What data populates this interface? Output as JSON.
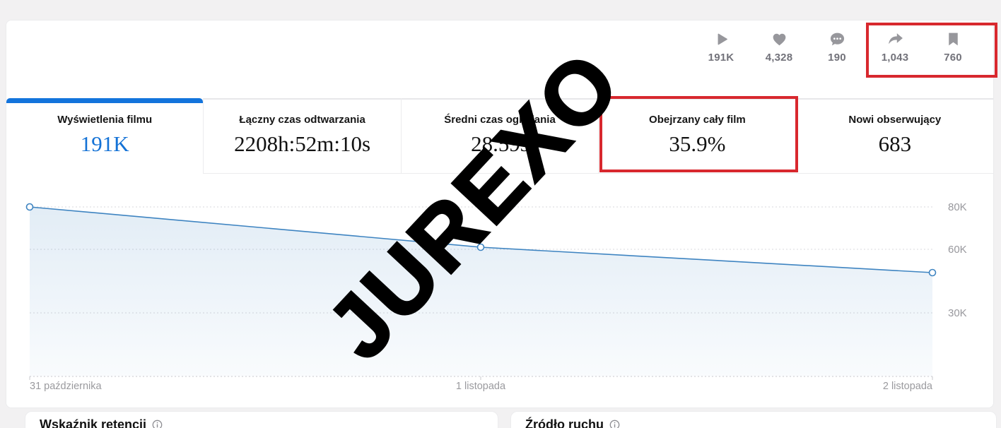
{
  "watermark": {
    "text": "JUREXO"
  },
  "colors": {
    "accent_blue": "#1374dc",
    "annotation_red": "#d8282e",
    "chart_line": "#3e84c1",
    "icon_gray": "#97979c"
  },
  "engagement": {
    "items": [
      {
        "icon": "play-icon",
        "value": "191K"
      },
      {
        "icon": "heart-icon",
        "value": "4,328"
      },
      {
        "icon": "comment-icon",
        "value": "190"
      },
      {
        "icon": "share-icon",
        "value": "1,043"
      },
      {
        "icon": "bookmark-icon",
        "value": "760"
      }
    ]
  },
  "tabs": {
    "items": [
      {
        "label": "Wyświetlenia filmu",
        "value": "191K",
        "active": true,
        "annotated": false
      },
      {
        "label": "Łączny czas odtwarzania",
        "value": "2208h:52m:10s",
        "active": false,
        "annotated": false
      },
      {
        "label": "Średni czas oglądania",
        "value": "28.59s",
        "active": false,
        "annotated": false
      },
      {
        "label": "Obejrzany cały film",
        "value": "35.9%",
        "active": false,
        "annotated": true
      },
      {
        "label": "Nowi obserwujący",
        "value": "683",
        "active": false,
        "annotated": false
      }
    ]
  },
  "chart_data": {
    "type": "area",
    "title": "",
    "xlabel": "",
    "ylabel": "",
    "x": [
      "31 października",
      "1 listopada",
      "2 listopada"
    ],
    "values": [
      80000,
      61000,
      49000
    ],
    "y_ticks": [
      {
        "label": "80K",
        "value": 80000
      },
      {
        "label": "60K",
        "value": 60000
      },
      {
        "label": "30K",
        "value": 30000
      }
    ],
    "ylim": [
      0,
      94000
    ],
    "grid": "dashed-horizontal",
    "legend": "none",
    "line_color": "#3e84c1",
    "fill_color_top": "rgba(62,132,193,0.15)",
    "fill_color_bottom": "rgba(62,132,193,0.03)"
  },
  "sections": {
    "retention": {
      "title": "Wskaźnik retencji"
    },
    "traffic": {
      "title": "Źródło ruchu"
    }
  }
}
